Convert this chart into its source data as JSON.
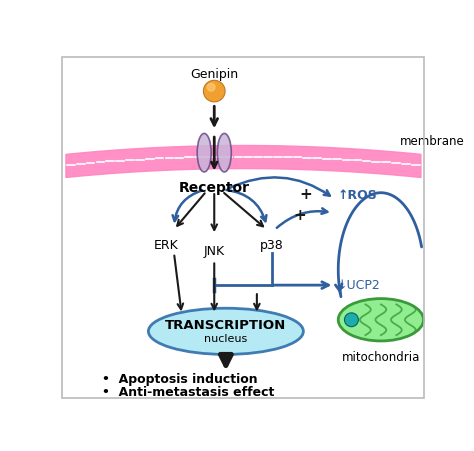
{
  "background_color": "#ffffff",
  "border_color": "#cccccc",
  "genipin_text": "Genipin",
  "receptor_text": "Receptor",
  "erk_text": "ERK",
  "jnk_text": "JNK",
  "p38_text": "p38",
  "ros_text": "↑ROS",
  "ucp2_text": "↓UCP2",
  "transcription_text": "TRANSCRIPTION",
  "nucleus_text": "nucleus",
  "mitochondria_text": "mitochondria",
  "membrane_text": "membrane",
  "transcription_color": "#ADE8F4",
  "transcription_border": "#2F6EAB",
  "mitochondria_color": "#90EE90",
  "mitochondria_border": "#3A9A3A",
  "arrow_black": "#1a1a1a",
  "arrow_blue": "#2F5F9E",
  "receptor_fill": "#C8B4D8",
  "receptor_edge": "#6A4A8A",
  "membrane_pink": "#FF85C0",
  "membrane_light": "#FFB0D0",
  "outcome1": "Apoptosis induction",
  "outcome2": "Anti-metastasis effect",
  "plus_color": "#1a1a1a"
}
